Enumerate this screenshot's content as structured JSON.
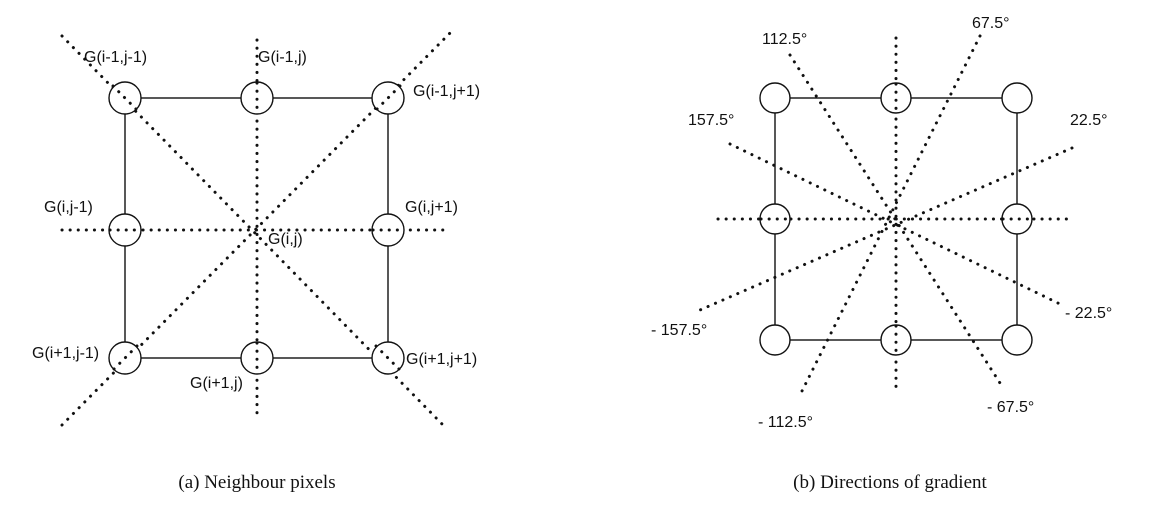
{
  "panel_a": {
    "caption": "(a) Neighbour pixels",
    "labels": {
      "top_left": "G(i-1,j-1)",
      "top_center": "G(i-1,j)",
      "top_right": "G(i-1,j+1)",
      "middle_left": "G(i,j-1)",
      "center": "G(i,j)",
      "middle_right": "G(i,j+1)",
      "bottom_left": "G(i+1,j-1)",
      "bottom_center": "G(i+1,j)",
      "bottom_right": "G(i+1,j+1)"
    }
  },
  "panel_b": {
    "caption": "(b) Directions of gradient",
    "angles": {
      "a112_5": "112.5°",
      "a67_5": "67.5°",
      "a157_5": "157.5°",
      "a22_5": "22.5°",
      "am157_5": "- 157.5°",
      "am22_5": "- 22.5°",
      "am112_5": "- 112.5°",
      "am67_5": "- 67.5°"
    }
  }
}
